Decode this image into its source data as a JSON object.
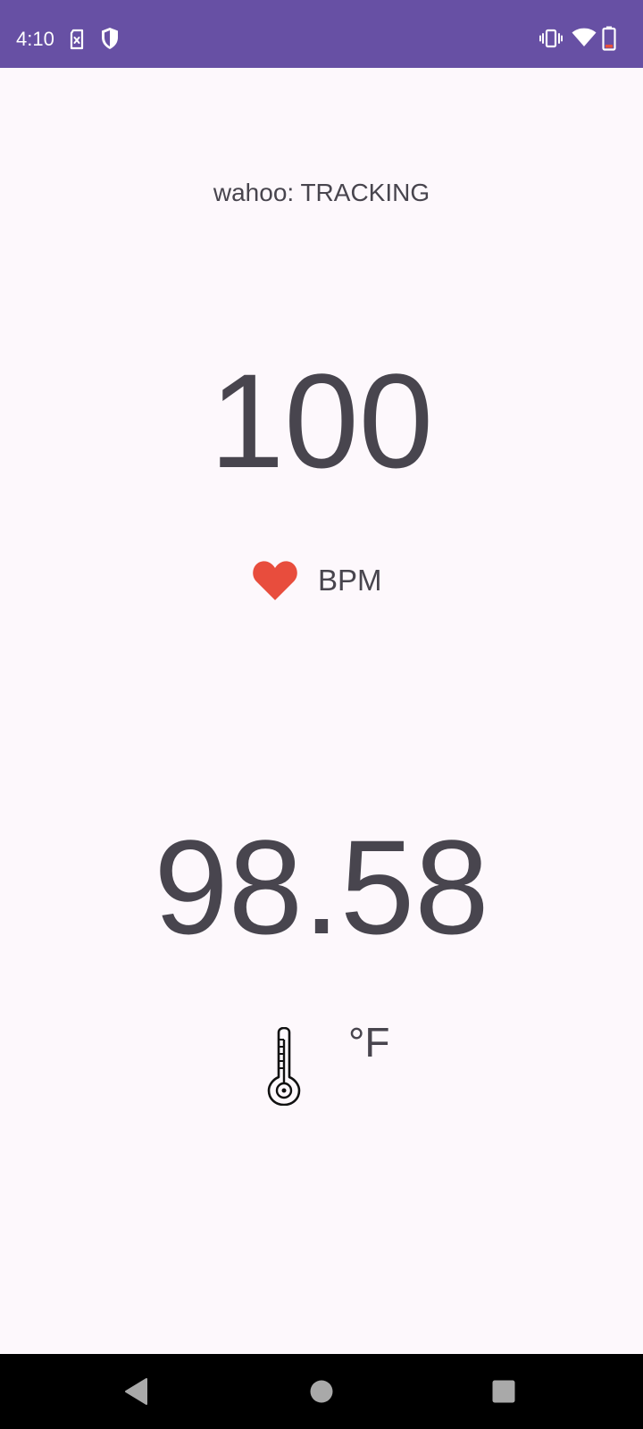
{
  "status_bar": {
    "time": "4:10",
    "icons": [
      "sim-card-icon",
      "shield-icon",
      "vibrate-icon",
      "wifi-icon",
      "battery-icon"
    ],
    "background_color": "#6750a4"
  },
  "device": {
    "status_text": "wahoo: TRACKING"
  },
  "heart_rate": {
    "value": "100",
    "unit": "BPM",
    "icon": "heart-icon",
    "icon_color": "#e84d3d"
  },
  "temperature": {
    "value": "98.58",
    "unit": "°F",
    "icon": "thermometer-icon"
  },
  "nav_bar": {
    "buttons": [
      "back-button",
      "home-button",
      "recents-button"
    ]
  }
}
